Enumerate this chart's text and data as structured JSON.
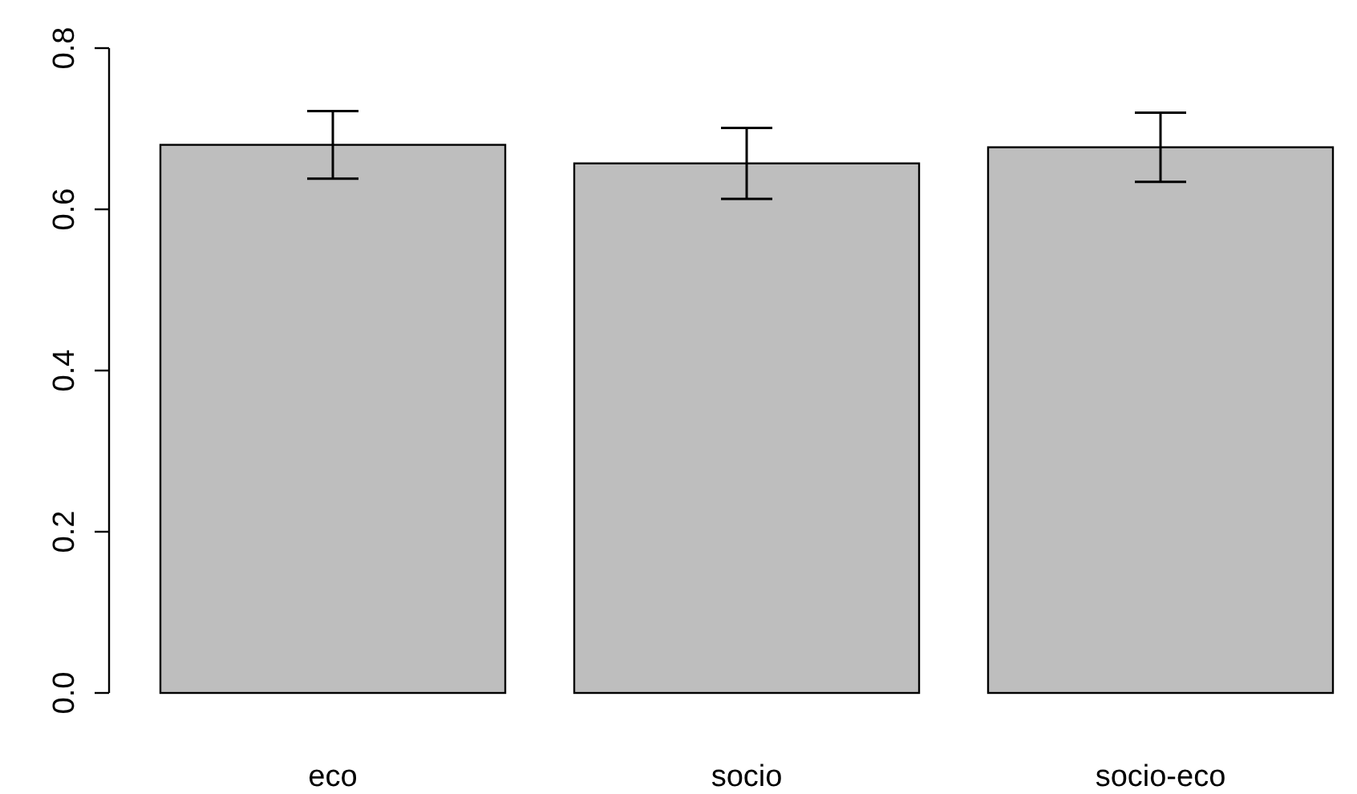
{
  "chart_data": {
    "type": "bar",
    "categories": [
      "eco",
      "socio",
      "socio-eco"
    ],
    "values": [
      0.68,
      0.657,
      0.677
    ],
    "color": "#bebebe",
    "errors": [
      0.042,
      0.044,
      0.043
    ],
    "ylim": [
      0,
      0.8
    ],
    "yticks": [
      {
        "value": 0,
        "label": "0.0"
      },
      {
        "value": 0.2,
        "label": "0.2"
      },
      {
        "value": 0.4,
        "label": "0.4"
      },
      {
        "value": 0.6,
        "label": "0.6"
      },
      {
        "value": 0.8,
        "label": "0.8"
      }
    ],
    "grid": false
  }
}
